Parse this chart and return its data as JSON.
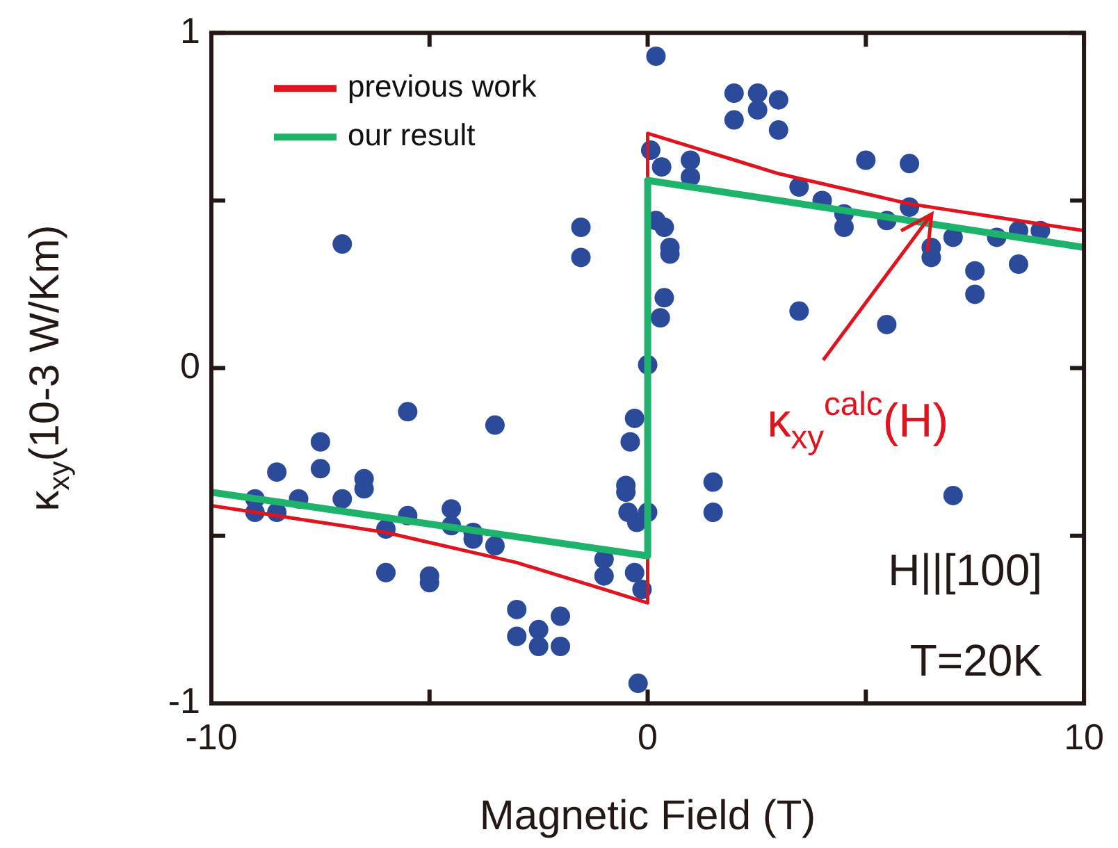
{
  "chart_data": {
    "type": "scatter",
    "xlabel": "Magnetic Field (T)",
    "ylabel": "κ$_{xy}$(10-3 W/Km)",
    "xlim": [
      -10,
      10
    ],
    "xticks": [
      -10,
      {
        "value": -5,
        "label": null
      },
      0,
      {
        "value": 5,
        "label": null
      },
      10
    ],
    "ylim": [
      -1,
      1
    ],
    "yticks": [
      -1,
      {
        "value": -0.5,
        "label": null
      },
      0,
      {
        "value": 0.5,
        "label": null
      },
      1
    ],
    "grid": false,
    "legend": "top left",
    "annotations": [
      {
        "text": "κ$_{xy}$$^{calc}$(H)",
        "x": 6.5,
        "y": 0.46
      },
      "H||[100]",
      "T=20K"
    ],
    "series": [
      {
        "type": "scatter",
        "color": "#2b4a9a",
        "marker": "circle",
        "x": [
          -7.0,
          -1.53,
          -1.53,
          0.19,
          1.98,
          2.52,
          3.0,
          1.98,
          2.52,
          3.0,
          0.07,
          0.32,
          0.98,
          0.98,
          5.0,
          6.0,
          3.47,
          4.0,
          4.5,
          4.5,
          5.48,
          6.0,
          6.5,
          6.5,
          7.0,
          8.0,
          8.5,
          9.0,
          8.5,
          7.5,
          7.5,
          3.47,
          5.48,
          0.19,
          0.38,
          0.51,
          0.51,
          0.38,
          0.29,
          0.0,
          -5.5,
          -3.5,
          -7.5,
          -7.5,
          -8.5,
          -6.5,
          -6.5,
          -9.0,
          -9.0,
          -8.5,
          -8.0,
          -7.0,
          -5.5,
          -4.5,
          -4.5,
          -6.0,
          -4.0,
          -4.0,
          -3.5,
          -6.0,
          -5.0,
          -5.0,
          -3.0,
          -2.5,
          -2.0,
          -3.0,
          -2.5,
          -2.0,
          -1.0,
          -1.0,
          -0.3,
          -0.4,
          -0.5,
          -0.5,
          -0.45,
          -0.25,
          -0.3,
          -0.13,
          -0.22,
          1.5,
          1.5,
          7.0,
          0.0
        ],
        "values": [
          0.37,
          0.42,
          0.33,
          0.93,
          0.82,
          0.82,
          0.8,
          0.74,
          0.77,
          0.71,
          0.65,
          0.6,
          0.62,
          0.57,
          0.62,
          0.61,
          0.54,
          0.5,
          0.46,
          0.42,
          0.44,
          0.48,
          0.36,
          0.33,
          0.39,
          0.39,
          0.41,
          0.41,
          0.31,
          0.29,
          0.22,
          0.17,
          0.13,
          0.44,
          0.42,
          0.36,
          0.34,
          0.21,
          0.15,
          0.01,
          -0.13,
          -0.17,
          -0.22,
          -0.3,
          -0.31,
          -0.33,
          -0.36,
          -0.39,
          -0.43,
          -0.43,
          -0.39,
          -0.39,
          -0.44,
          -0.42,
          -0.47,
          -0.48,
          -0.49,
          -0.51,
          -0.53,
          -0.61,
          -0.62,
          -0.64,
          -0.72,
          -0.78,
          -0.74,
          -0.8,
          -0.83,
          -0.83,
          -0.57,
          -0.62,
          -0.15,
          -0.22,
          -0.35,
          -0.37,
          -0.43,
          -0.46,
          -0.61,
          -0.66,
          -0.94,
          -0.34,
          -0.43,
          -0.38,
          -0.43
        ]
      },
      {
        "type": "line",
        "name": "previous work",
        "color": "#e0141e",
        "marker": "none",
        "x": [
          -10,
          -9,
          -8,
          -7,
          -6,
          -5,
          -4,
          -3,
          -2,
          -1,
          0,
          0,
          1,
          2,
          3,
          4,
          5,
          6,
          7,
          8,
          9,
          10
        ],
        "values": [
          -0.41,
          -0.43,
          -0.45,
          -0.47,
          -0.49,
          -0.52,
          -0.55,
          -0.58,
          -0.62,
          -0.66,
          -0.7,
          0.7,
          0.66,
          0.62,
          0.58,
          0.55,
          0.52,
          0.49,
          0.47,
          0.45,
          0.43,
          0.41
        ]
      },
      {
        "type": "line",
        "name": "our result",
        "color": "#1db36b",
        "marker": "none",
        "x": [
          -10,
          0,
          0,
          10
        ],
        "values": [
          -0.37,
          -0.56,
          0.56,
          0.36
        ]
      }
    ]
  }
}
